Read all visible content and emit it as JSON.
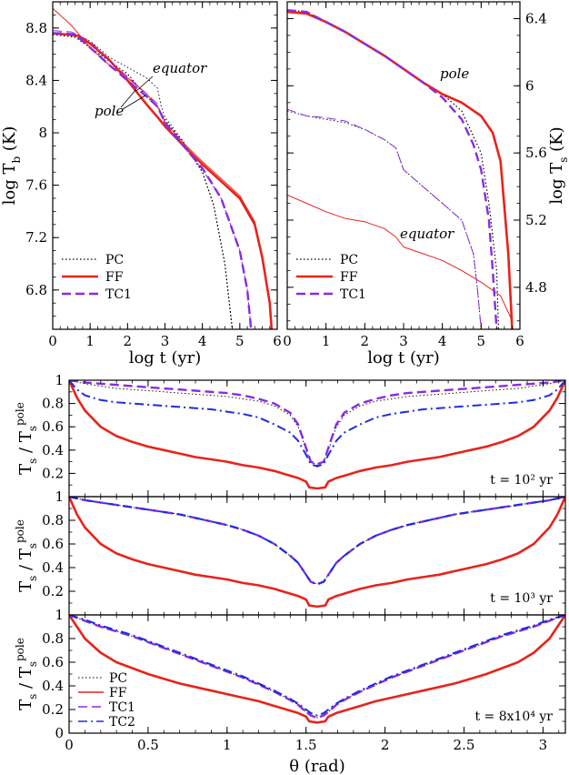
{
  "colors": {
    "PC": "#000000",
    "FF": "#e8231a",
    "TC1": "#8a2be2",
    "TC2": "#1c2ee0"
  },
  "chart_data": [
    {
      "id": "top-left",
      "type": "line",
      "xlabel": "log t (yr)",
      "ylabel": "log T_b (K)",
      "xlim": [
        0,
        6
      ],
      "ylim": [
        6.5,
        9.0
      ],
      "xticks": [
        "0",
        "1",
        "2",
        "3",
        "4",
        "5",
        "6"
      ],
      "yticks": [
        "6.8",
        "7.2",
        "7.6",
        "8",
        "8.4",
        "8.8"
      ],
      "annotations": [
        "equator",
        "pole"
      ],
      "legend": [
        "PC",
        "FF",
        "TC1"
      ],
      "series": [
        {
          "name": "PC",
          "group": "pole",
          "x": [
            0,
            0.3,
            0.6,
            1,
            1.5,
            2,
            2.5,
            2.8,
            3,
            3.5,
            4,
            4.3,
            4.6,
            4.8
          ],
          "y": [
            8.75,
            8.74,
            8.73,
            8.65,
            8.55,
            8.45,
            8.28,
            8.2,
            8.1,
            7.92,
            7.7,
            7.45,
            7.0,
            6.5
          ]
        },
        {
          "name": "PC",
          "group": "equator",
          "x": [
            0,
            0.5,
            1,
            1.5,
            2,
            2.5,
            2.8,
            2.9,
            3,
            3.5,
            4,
            4.3,
            4.6,
            4.8
          ],
          "y": [
            8.76,
            8.74,
            8.7,
            8.58,
            8.5,
            8.42,
            8.34,
            8.2,
            8.12,
            7.93,
            7.7,
            7.45,
            7.0,
            6.5
          ]
        },
        {
          "name": "FF",
          "group": "pole",
          "x": [
            0,
            0.4,
            0.7,
            1,
            1.5,
            2,
            2.5,
            2.8,
            3,
            3.5,
            4,
            4.5,
            5,
            5.4,
            5.6,
            5.8,
            5.85
          ],
          "y": [
            8.76,
            8.75,
            8.74,
            8.68,
            8.56,
            8.4,
            8.22,
            8.12,
            8.05,
            7.9,
            7.76,
            7.63,
            7.5,
            7.3,
            7.05,
            6.7,
            6.5
          ]
        },
        {
          "name": "FF",
          "group": "equator",
          "x": [
            0,
            0.5,
            1,
            1.5,
            2,
            2.5,
            2.8,
            3,
            3.5,
            4,
            4.5,
            5,
            5.4,
            5.6,
            5.8,
            5.85
          ],
          "y": [
            8.95,
            8.82,
            8.65,
            8.52,
            8.42,
            8.3,
            8.2,
            8.08,
            7.92,
            7.78,
            7.65,
            7.52,
            7.32,
            7.05,
            6.7,
            6.5
          ]
        },
        {
          "name": "TC1",
          "group": "pole",
          "x": [
            0,
            0.3,
            0.6,
            1,
            1.5,
            2,
            2.5,
            2.8,
            3,
            3.5,
            4,
            4.5,
            5,
            5.2,
            5.3
          ],
          "y": [
            8.76,
            8.76,
            8.75,
            8.65,
            8.52,
            8.4,
            8.28,
            8.2,
            8.08,
            7.9,
            7.73,
            7.5,
            7.1,
            6.8,
            6.5
          ]
        },
        {
          "name": "TC1",
          "group": "equator",
          "x": [
            0,
            0.5,
            1,
            1.5,
            2,
            2.5,
            2.8,
            3,
            3.5,
            4,
            4.5,
            5,
            5.2,
            5.3
          ],
          "y": [
            8.78,
            8.77,
            8.7,
            8.55,
            8.43,
            8.3,
            8.22,
            8.06,
            7.89,
            7.72,
            7.5,
            7.1,
            6.8,
            6.5
          ]
        }
      ]
    },
    {
      "id": "top-right",
      "type": "line",
      "xlabel": "log t (yr)",
      "ylabel": "log T_s (K)",
      "xlim": [
        0,
        6
      ],
      "ylim": [
        4.55,
        6.5
      ],
      "xticks": [
        "0",
        "1",
        "2",
        "3",
        "4",
        "5",
        "6"
      ],
      "yticks": [
        "4.8",
        "5.2",
        "5.6",
        "6",
        "6.4"
      ],
      "annotations": [
        "pole",
        "equator"
      ],
      "legend": [
        "PC",
        "FF",
        "TC1"
      ],
      "series": [
        {
          "name": "PC",
          "group": "pole",
          "x": [
            0,
            0.5,
            1,
            1.5,
            2,
            2.5,
            3,
            3.5,
            4,
            4.5,
            5,
            5.2,
            5.4,
            5.45
          ],
          "y": [
            6.45,
            6.44,
            6.38,
            6.32,
            6.25,
            6.18,
            6.1,
            6.02,
            5.95,
            5.85,
            5.6,
            5.3,
            4.9,
            4.55
          ]
        },
        {
          "name": "PC",
          "group": "equator",
          "x": [
            0,
            0.5,
            1,
            1.5,
            2,
            2.5,
            2.8,
            3,
            3.5,
            4,
            4.5,
            4.8,
            4.9,
            5
          ],
          "y": [
            5.85,
            5.82,
            5.8,
            5.78,
            5.74,
            5.68,
            5.63,
            5.5,
            5.4,
            5.3,
            5.2,
            5.0,
            4.8,
            4.55
          ]
        },
        {
          "name": "FF",
          "group": "pole",
          "x": [
            0,
            0.5,
            1,
            1.5,
            2,
            2.5,
            3,
            3.5,
            4,
            4.5,
            5,
            5.3,
            5.5,
            5.7,
            5.8
          ],
          "y": [
            6.44,
            6.43,
            6.38,
            6.32,
            6.25,
            6.18,
            6.1,
            6.02,
            5.95,
            5.9,
            5.82,
            5.72,
            5.55,
            5.0,
            4.55
          ]
        },
        {
          "name": "FF",
          "group": "equator",
          "x": [
            0,
            0.5,
            1,
            1.5,
            2,
            2.5,
            2.8,
            3,
            3.5,
            4,
            4.5,
            5,
            5.5,
            5.8
          ],
          "y": [
            5.35,
            5.3,
            5.25,
            5.21,
            5.19,
            5.15,
            5.1,
            5.04,
            5.0,
            4.96,
            4.9,
            4.83,
            4.75,
            4.6
          ]
        },
        {
          "name": "TC1",
          "group": "pole",
          "x": [
            0,
            0.5,
            1,
            1.5,
            2,
            2.5,
            3,
            3.5,
            4,
            4.5,
            4.8,
            5,
            5.2,
            5.3,
            5.4
          ],
          "y": [
            6.45,
            6.44,
            6.38,
            6.32,
            6.25,
            6.18,
            6.1,
            6.02,
            5.93,
            5.8,
            5.65,
            5.5,
            5.2,
            4.9,
            4.55
          ]
        },
        {
          "name": "TC1",
          "group": "equator",
          "x": [
            0,
            0.5,
            1,
            1.5,
            2,
            2.5,
            2.8,
            3,
            3.5,
            4,
            4.5,
            4.8,
            4.9,
            5
          ],
          "y": [
            5.86,
            5.82,
            5.81,
            5.79,
            5.74,
            5.68,
            5.63,
            5.5,
            5.4,
            5.3,
            5.2,
            5.0,
            4.8,
            4.55
          ]
        }
      ]
    },
    {
      "id": "bottom-1",
      "type": "line",
      "xlabel": "",
      "ylabel": "T_s / T_s^pole",
      "xlim": [
        0,
        3.1416
      ],
      "ylim": [
        0,
        1
      ],
      "yticks": [
        "0.2",
        "0.4",
        "0.6",
        "0.8",
        "1"
      ],
      "note": "t = 10² yr",
      "series": [
        {
          "name": "PC",
          "x": [
            0,
            0.1,
            0.2,
            0.3,
            0.4,
            0.5,
            0.6,
            0.7,
            0.8,
            0.9,
            1,
            1.1,
            1.2,
            1.3,
            1.4,
            1.45,
            1.5,
            1.53,
            1.57
          ],
          "y": [
            1,
            0.97,
            0.95,
            0.93,
            0.92,
            0.91,
            0.9,
            0.89,
            0.88,
            0.87,
            0.86,
            0.84,
            0.82,
            0.78,
            0.7,
            0.6,
            0.4,
            0.3,
            0.27
          ]
        },
        {
          "name": "FF",
          "x": [
            0,
            0.05,
            0.1,
            0.2,
            0.3,
            0.4,
            0.5,
            0.6,
            0.7,
            0.8,
            0.9,
            1,
            1.1,
            1.2,
            1.3,
            1.4,
            1.45,
            1.5,
            1.52,
            1.57
          ],
          "y": [
            1,
            0.85,
            0.74,
            0.6,
            0.52,
            0.47,
            0.43,
            0.4,
            0.37,
            0.34,
            0.32,
            0.3,
            0.27,
            0.25,
            0.22,
            0.18,
            0.16,
            0.13,
            0.08,
            0.07
          ]
        },
        {
          "name": "TC1",
          "x": [
            0,
            0.1,
            0.2,
            0.3,
            0.4,
            0.5,
            0.6,
            0.7,
            0.8,
            0.9,
            1,
            1.1,
            1.2,
            1.3,
            1.4,
            1.45,
            1.5,
            1.53,
            1.57
          ],
          "y": [
            1,
            0.98,
            0.97,
            0.96,
            0.95,
            0.94,
            0.93,
            0.92,
            0.91,
            0.9,
            0.89,
            0.87,
            0.84,
            0.8,
            0.72,
            0.62,
            0.42,
            0.3,
            0.28
          ]
        },
        {
          "name": "TC2",
          "x": [
            0,
            0.05,
            0.1,
            0.2,
            0.3,
            0.4,
            0.5,
            0.6,
            0.7,
            0.8,
            0.9,
            1,
            1.1,
            1.2,
            1.3,
            1.4,
            1.45,
            1.5,
            1.53,
            1.57
          ],
          "y": [
            1,
            0.92,
            0.87,
            0.83,
            0.81,
            0.8,
            0.79,
            0.78,
            0.77,
            0.76,
            0.75,
            0.73,
            0.71,
            0.68,
            0.62,
            0.55,
            0.48,
            0.36,
            0.28,
            0.26
          ]
        }
      ]
    },
    {
      "id": "bottom-2",
      "type": "line",
      "xlabel": "",
      "ylabel": "T_s / T_s^pole",
      "xlim": [
        0,
        3.1416
      ],
      "ylim": [
        0,
        1
      ],
      "yticks": [
        "0.2",
        "0.4",
        "0.6",
        "0.8",
        "1"
      ],
      "note": "t = 10³ yr",
      "series": [
        {
          "name": "PC",
          "x": [
            0,
            0.1,
            0.2,
            0.3,
            0.4,
            0.5,
            0.6,
            0.7,
            0.8,
            0.9,
            1,
            1.1,
            1.2,
            1.3,
            1.4,
            1.45,
            1.5,
            1.53,
            1.57
          ],
          "y": [
            1,
            0.97,
            0.95,
            0.93,
            0.91,
            0.89,
            0.87,
            0.85,
            0.82,
            0.79,
            0.76,
            0.72,
            0.67,
            0.6,
            0.5,
            0.44,
            0.34,
            0.28,
            0.26
          ]
        },
        {
          "name": "FF",
          "x": [
            0,
            0.05,
            0.1,
            0.2,
            0.3,
            0.4,
            0.5,
            0.6,
            0.7,
            0.8,
            0.9,
            1,
            1.1,
            1.2,
            1.3,
            1.4,
            1.45,
            1.5,
            1.52,
            1.57
          ],
          "y": [
            1,
            0.85,
            0.74,
            0.6,
            0.52,
            0.47,
            0.43,
            0.4,
            0.37,
            0.34,
            0.32,
            0.3,
            0.27,
            0.25,
            0.22,
            0.18,
            0.16,
            0.13,
            0.08,
            0.07
          ]
        },
        {
          "name": "TC1",
          "x": [
            0,
            0.1,
            0.2,
            0.3,
            0.4,
            0.5,
            0.6,
            0.7,
            0.8,
            0.9,
            1,
            1.1,
            1.2,
            1.3,
            1.4,
            1.45,
            1.5,
            1.53,
            1.57
          ],
          "y": [
            1,
            0.97,
            0.95,
            0.93,
            0.91,
            0.89,
            0.87,
            0.85,
            0.82,
            0.79,
            0.76,
            0.72,
            0.67,
            0.6,
            0.5,
            0.44,
            0.34,
            0.28,
            0.26
          ]
        },
        {
          "name": "TC2",
          "x": [
            0,
            0.1,
            0.2,
            0.3,
            0.4,
            0.5,
            0.6,
            0.7,
            0.8,
            0.9,
            1,
            1.1,
            1.2,
            1.3,
            1.4,
            1.45,
            1.5,
            1.53,
            1.57
          ],
          "y": [
            1,
            0.97,
            0.95,
            0.93,
            0.91,
            0.89,
            0.87,
            0.85,
            0.82,
            0.79,
            0.76,
            0.72,
            0.67,
            0.6,
            0.5,
            0.44,
            0.34,
            0.28,
            0.26
          ]
        }
      ]
    },
    {
      "id": "bottom-3",
      "type": "line",
      "xlabel": "θ (rad)",
      "ylabel": "T_s / T_s^pole",
      "xlim": [
        0,
        3.1416
      ],
      "ylim": [
        0,
        1
      ],
      "xticks": [
        "0",
        "0.5",
        "1",
        "1.5",
        "2",
        "2.5",
        "3"
      ],
      "yticks": [
        "0",
        "0.2",
        "0.4",
        "0.6",
        "0.8",
        "1"
      ],
      "note": "t = 8x10⁴ yr",
      "legend": [
        "PC",
        "FF",
        "TC1",
        "TC2"
      ],
      "series": [
        {
          "name": "PC",
          "x": [
            0,
            0.1,
            0.2,
            0.3,
            0.4,
            0.5,
            0.6,
            0.7,
            0.8,
            0.9,
            1,
            1.1,
            1.2,
            1.3,
            1.4,
            1.45,
            1.5,
            1.53,
            1.57
          ],
          "y": [
            1,
            0.95,
            0.9,
            0.86,
            0.82,
            0.77,
            0.72,
            0.67,
            0.62,
            0.57,
            0.52,
            0.47,
            0.41,
            0.35,
            0.28,
            0.24,
            0.18,
            0.15,
            0.13
          ]
        },
        {
          "name": "FF",
          "x": [
            0,
            0.05,
            0.1,
            0.2,
            0.3,
            0.4,
            0.5,
            0.6,
            0.7,
            0.8,
            0.9,
            1,
            1.1,
            1.2,
            1.3,
            1.4,
            1.45,
            1.5,
            1.52,
            1.57
          ],
          "y": [
            1,
            0.9,
            0.8,
            0.68,
            0.6,
            0.55,
            0.5,
            0.46,
            0.42,
            0.39,
            0.36,
            0.33,
            0.3,
            0.27,
            0.23,
            0.19,
            0.17,
            0.14,
            0.1,
            0.09
          ]
        },
        {
          "name": "TC1",
          "x": [
            0,
            0.1,
            0.2,
            0.3,
            0.4,
            0.5,
            0.6,
            0.7,
            0.8,
            0.9,
            1,
            1.1,
            1.2,
            1.3,
            1.4,
            1.45,
            1.5,
            1.53,
            1.57
          ],
          "y": [
            1,
            0.95,
            0.9,
            0.86,
            0.82,
            0.77,
            0.72,
            0.67,
            0.62,
            0.57,
            0.52,
            0.47,
            0.41,
            0.35,
            0.28,
            0.24,
            0.18,
            0.15,
            0.13
          ]
        },
        {
          "name": "TC2",
          "x": [
            0,
            0.1,
            0.2,
            0.3,
            0.4,
            0.5,
            0.6,
            0.7,
            0.8,
            0.9,
            1,
            1.1,
            1.2,
            1.3,
            1.4,
            1.45,
            1.5,
            1.53,
            1.57
          ],
          "y": [
            1,
            0.96,
            0.91,
            0.87,
            0.83,
            0.78,
            0.73,
            0.68,
            0.63,
            0.58,
            0.53,
            0.48,
            0.42,
            0.36,
            0.29,
            0.25,
            0.2,
            0.17,
            0.15
          ]
        }
      ]
    }
  ]
}
